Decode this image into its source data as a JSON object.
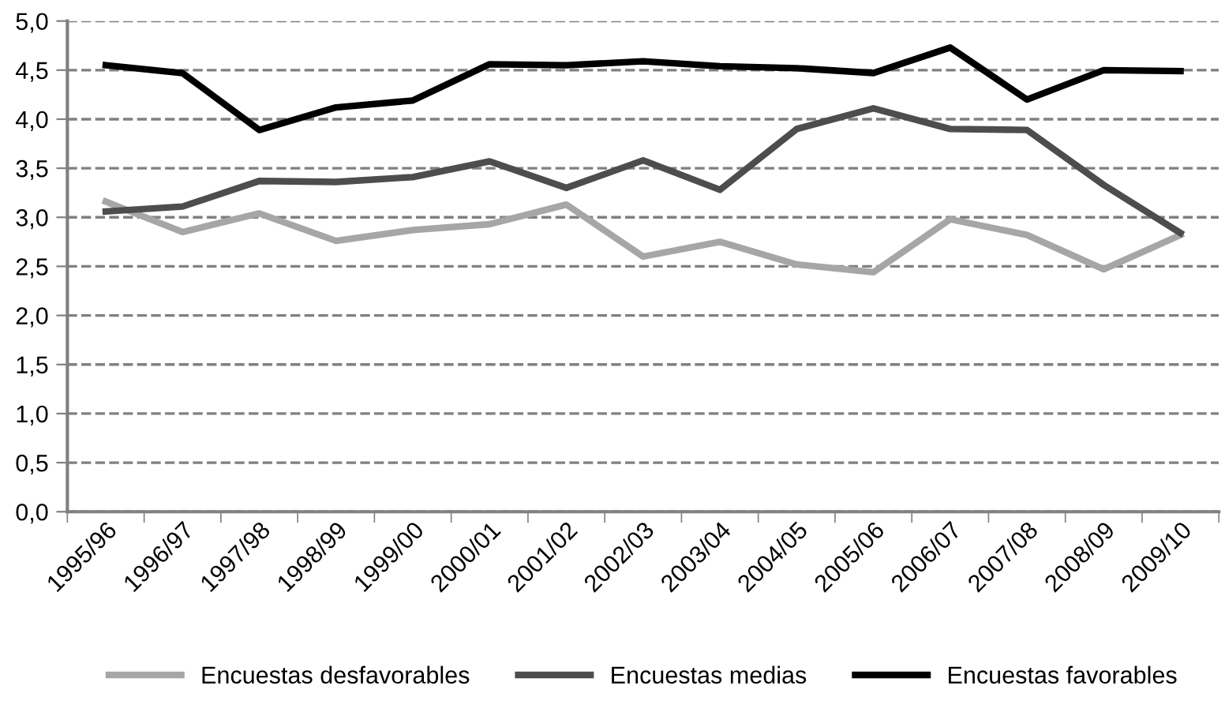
{
  "chart_data": {
    "type": "line",
    "categories": [
      "1995/96",
      "1996/97",
      "1997/98",
      "1998/99",
      "1999/00",
      "2000/01",
      "2001/02",
      "2002/03",
      "2003/04",
      "2004/05",
      "2005/06",
      "2006/07",
      "2007/08",
      "2008/09",
      "2009/10"
    ],
    "series": [
      {
        "name": "Encuestas desfavorables",
        "color": "#a6a6a6",
        "values": [
          3.16,
          2.85,
          3.04,
          2.76,
          2.87,
          2.93,
          3.13,
          2.6,
          2.75,
          2.52,
          2.44,
          2.98,
          2.82,
          2.47,
          2.82
        ]
      },
      {
        "name": "Encuestas medias",
        "color": "#4d4d4d",
        "values": [
          3.06,
          3.11,
          3.37,
          3.36,
          3.41,
          3.57,
          3.3,
          3.58,
          3.28,
          3.9,
          4.11,
          3.9,
          3.89,
          3.33,
          2.84
        ]
      },
      {
        "name": "Encuestas favorables",
        "color": "#000000",
        "values": [
          4.55,
          4.47,
          3.89,
          4.12,
          4.19,
          4.56,
          4.55,
          4.59,
          4.54,
          4.52,
          4.47,
          4.73,
          4.2,
          4.5,
          4.49
        ]
      }
    ],
    "ylim": [
      0,
      5
    ],
    "yticks": [
      {
        "value": 0,
        "label": "0,0"
      },
      {
        "value": 0.5,
        "label": "0,5"
      },
      {
        "value": 1,
        "label": "1,0"
      },
      {
        "value": 1.5,
        "label": "1,5"
      },
      {
        "value": 2,
        "label": "2,0"
      },
      {
        "value": 2.5,
        "label": "2,5"
      },
      {
        "value": 3,
        "label": "3,0"
      },
      {
        "value": 3.5,
        "label": "3,5"
      },
      {
        "value": 4,
        "label": "4,0"
      },
      {
        "value": 4.5,
        "label": "4,5"
      },
      {
        "value": 5,
        "label": "5,0"
      }
    ],
    "grid": "y",
    "legend": "bottom",
    "marker": "none",
    "line_style": "solid"
  }
}
